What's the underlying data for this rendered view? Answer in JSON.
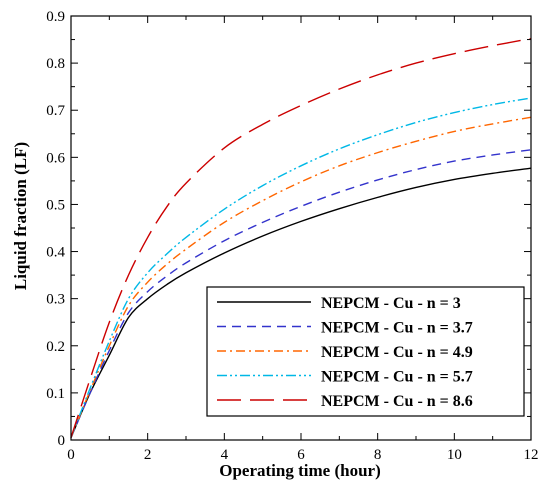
{
  "chart_data": {
    "type": "line",
    "xlabel": "Operating time (hour)",
    "ylabel": "Liquid fraction (LF)",
    "xlim": [
      0,
      12
    ],
    "ylim": [
      0,
      0.9
    ],
    "x_ticks": [
      "0",
      "2",
      "4",
      "6",
      "8",
      "10",
      "12"
    ],
    "y_ticks": [
      "0",
      "0.1",
      "0.2",
      "0.3",
      "0.4",
      "0.5",
      "0.6",
      "0.7",
      "0.8",
      "0.9"
    ],
    "grid": false,
    "legend_position": "bottom-right",
    "series": [
      {
        "name": "NEPCM - Cu - n = 3",
        "color": "#000000",
        "dash": "solid",
        "x": [
          0,
          0.5,
          1,
          1.5,
          2,
          2.5,
          3,
          4,
          5,
          6,
          7,
          8,
          9,
          10,
          11,
          12
        ],
        "y": [
          0.005,
          0.1,
          0.18,
          0.26,
          0.3,
          0.33,
          0.355,
          0.397,
          0.433,
          0.464,
          0.491,
          0.515,
          0.536,
          0.553,
          0.566,
          0.577
        ]
      },
      {
        "name": "NEPCM - Cu - n = 3.7",
        "color": "#3333cc",
        "dash": "dash",
        "x": [
          0,
          0.5,
          1,
          1.5,
          2,
          2.5,
          3,
          4,
          5,
          6,
          7,
          8,
          9,
          10,
          11,
          12
        ],
        "y": [
          0.005,
          0.1,
          0.19,
          0.27,
          0.315,
          0.348,
          0.376,
          0.423,
          0.462,
          0.496,
          0.526,
          0.552,
          0.574,
          0.592,
          0.605,
          0.616
        ]
      },
      {
        "name": "NEPCM - Cu - n = 4.9",
        "color": "#ff6600",
        "dash": "dashdot",
        "x": [
          0,
          0.5,
          1,
          1.5,
          2,
          2.5,
          3,
          4,
          5,
          6,
          7,
          8,
          9,
          10,
          11,
          12
        ],
        "y": [
          0.005,
          0.105,
          0.2,
          0.285,
          0.335,
          0.373,
          0.405,
          0.462,
          0.508,
          0.548,
          0.582,
          0.61,
          0.634,
          0.655,
          0.671,
          0.685
        ]
      },
      {
        "name": "NEPCM - Cu - n = 5.7",
        "color": "#00b8e6",
        "dash": "dashdotdot",
        "x": [
          0,
          0.5,
          1,
          1.5,
          2,
          2.5,
          3,
          4,
          5,
          6,
          7,
          8,
          9,
          10,
          11,
          12
        ],
        "y": [
          0.005,
          0.11,
          0.21,
          0.3,
          0.355,
          0.395,
          0.43,
          0.49,
          0.54,
          0.582,
          0.618,
          0.648,
          0.674,
          0.695,
          0.712,
          0.726
        ]
      },
      {
        "name": "NEPCM - Cu - n = 8.6",
        "color": "#cc0000",
        "dash": "longdash",
        "x": [
          0,
          0.5,
          1,
          1.5,
          2,
          2.5,
          3,
          4,
          5,
          6,
          7,
          8,
          9,
          10,
          11,
          12
        ],
        "y": [
          0.005,
          0.13,
          0.25,
          0.35,
          0.43,
          0.495,
          0.545,
          0.62,
          0.67,
          0.71,
          0.745,
          0.775,
          0.8,
          0.82,
          0.837,
          0.852
        ]
      }
    ]
  }
}
